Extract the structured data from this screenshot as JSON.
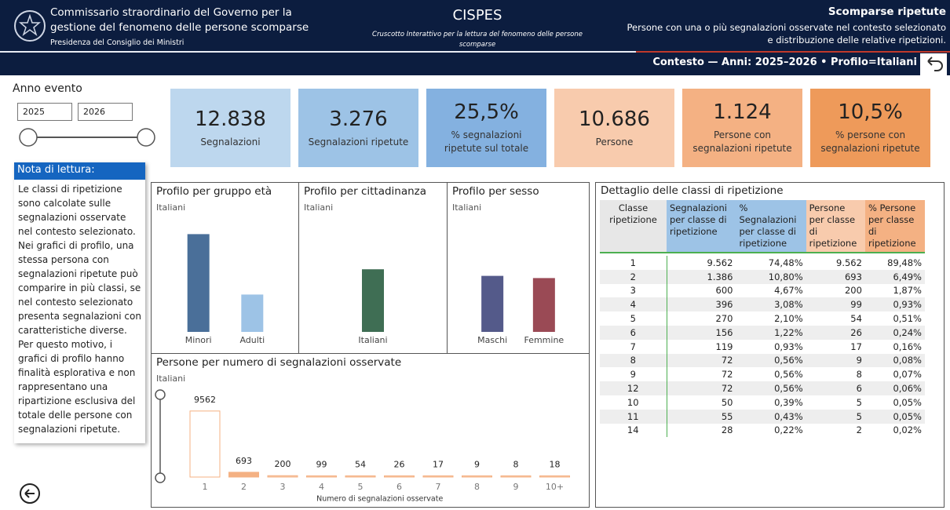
{
  "header": {
    "org_title": "Commissario straordinario del Governo per la gestione del fenomeno delle persone scomparse",
    "org_subtitle": "Presidenza del Consiglio dei Ministri",
    "app_title": "CISPES",
    "app_subtitle": "Cruscotto Interattivo per la lettura del fenomeno delle persone scomparse",
    "page_title": "Scomparse ripetute",
    "page_description": "Persone con una o più segnalazioni osservate nel contesto selezionato e distribuzione delle relative ripetizioni.",
    "context": "Contesto — Anni: 2025–2026 • Profilo=Italiani"
  },
  "filter": {
    "label": "Anno evento",
    "from": "2025",
    "to": "2026"
  },
  "kpis": [
    {
      "value": "12.838",
      "label": "Segnalazioni",
      "color": "#bdd7ee"
    },
    {
      "value": "3.276",
      "label": "Segnalazioni ripetute",
      "color": "#9dc3e6"
    },
    {
      "value": "25,5%",
      "label": "% segnalazioni ripetute sul totale",
      "color": "#84b1e0"
    },
    {
      "value": "10.686",
      "label": "Persone",
      "color": "#f8cbad"
    },
    {
      "value": "1.124",
      "label": "Persone con segnalazioni ripetute",
      "color": "#f4b183"
    },
    {
      "value": "10,5%",
      "label": "% persone con segnalazioni ripetute",
      "color": "#ee9a5a"
    }
  ],
  "note": {
    "title": "Nota di lettura:",
    "text": "Le classi di ripetizione sono calcolate sulle segnalazioni osservate nel contesto selezionato. Nei grafici di profilo, una stessa persona con segnalazioni ripetute può comparire in più classi, se nel contesto selezionato presenta segnalazioni con caratteristiche diverse. Per questo motivo, i grafici di profilo hanno finalità esplorativa e non rappresentano una ripartizione esclusiva del totale delle persone con segnalazioni ripetute."
  },
  "chart_data": [
    {
      "type": "bar",
      "title": "Profilo per gruppo età",
      "subtitle": "Italiani",
      "categories": [
        "Minori",
        "Adulti"
      ],
      "values": [
        89,
        34
      ],
      "colors": [
        "#4a6f99",
        "#9dc3e6"
      ],
      "ylim": [
        0,
        100
      ]
    },
    {
      "type": "bar",
      "title": "Profilo per cittadinanza",
      "subtitle": "Italiani",
      "categories": [
        "Italiani"
      ],
      "values": [
        57
      ],
      "colors": [
        "#3f6e54"
      ],
      "ylim": [
        0,
        100
      ]
    },
    {
      "type": "bar",
      "title": "Profilo per sesso",
      "subtitle": "Italiani",
      "categories": [
        "Maschi",
        "Femmine"
      ],
      "values": [
        51,
        49
      ],
      "colors": [
        "#545a8a",
        "#9a4a55"
      ],
      "ylim": [
        0,
        100
      ]
    },
    {
      "type": "bar",
      "title": "Persone per numero di segnalazioni osservate",
      "subtitle": "Italiani",
      "xlabel": "Numero di segnalazioni osservate",
      "categories": [
        "1",
        "2",
        "3",
        "4",
        "5",
        "6",
        "7",
        "8",
        "9",
        "10+"
      ],
      "values": [
        9562,
        693,
        200,
        99,
        54,
        26,
        17,
        9,
        8,
        18
      ],
      "colors": [
        "#ffffff",
        "#f4b183",
        "#f8cbad",
        "#f8cbad",
        "#f8cbad",
        "#f8cbad",
        "#f8cbad",
        "#f8cbad",
        "#f8cbad",
        "#f8cbad"
      ],
      "ylim": [
        0,
        10000
      ]
    }
  ],
  "table": {
    "title": "Dettaglio delle classi di ripetizione",
    "headers": [
      "Classe ripetizione",
      "Segnalazioni per classe di ripetizione",
      "% Segnalazioni per classe di ripetizione",
      "Persone per classe di ripetizione",
      "% Persone per classe di ripetizione"
    ],
    "rows": [
      [
        "1",
        "9.562",
        "74,48%",
        "9.562",
        "89,48%"
      ],
      [
        "2",
        "1.386",
        "10,80%",
        "693",
        "6,49%"
      ],
      [
        "3",
        "600",
        "4,67%",
        "200",
        "1,87%"
      ],
      [
        "4",
        "396",
        "3,08%",
        "99",
        "0,93%"
      ],
      [
        "5",
        "270",
        "2,10%",
        "54",
        "0,51%"
      ],
      [
        "6",
        "156",
        "1,22%",
        "26",
        "0,24%"
      ],
      [
        "7",
        "119",
        "0,93%",
        "17",
        "0,16%"
      ],
      [
        "8",
        "72",
        "0,56%",
        "9",
        "0,08%"
      ],
      [
        "9",
        "72",
        "0,56%",
        "8",
        "0,07%"
      ],
      [
        "12",
        "72",
        "0,56%",
        "6",
        "0,06%"
      ],
      [
        "10",
        "50",
        "0,39%",
        "5",
        "0,05%"
      ],
      [
        "11",
        "55",
        "0,43%",
        "5",
        "0,05%"
      ],
      [
        "14",
        "28",
        "0,22%",
        "2",
        "0,02%"
      ]
    ]
  }
}
